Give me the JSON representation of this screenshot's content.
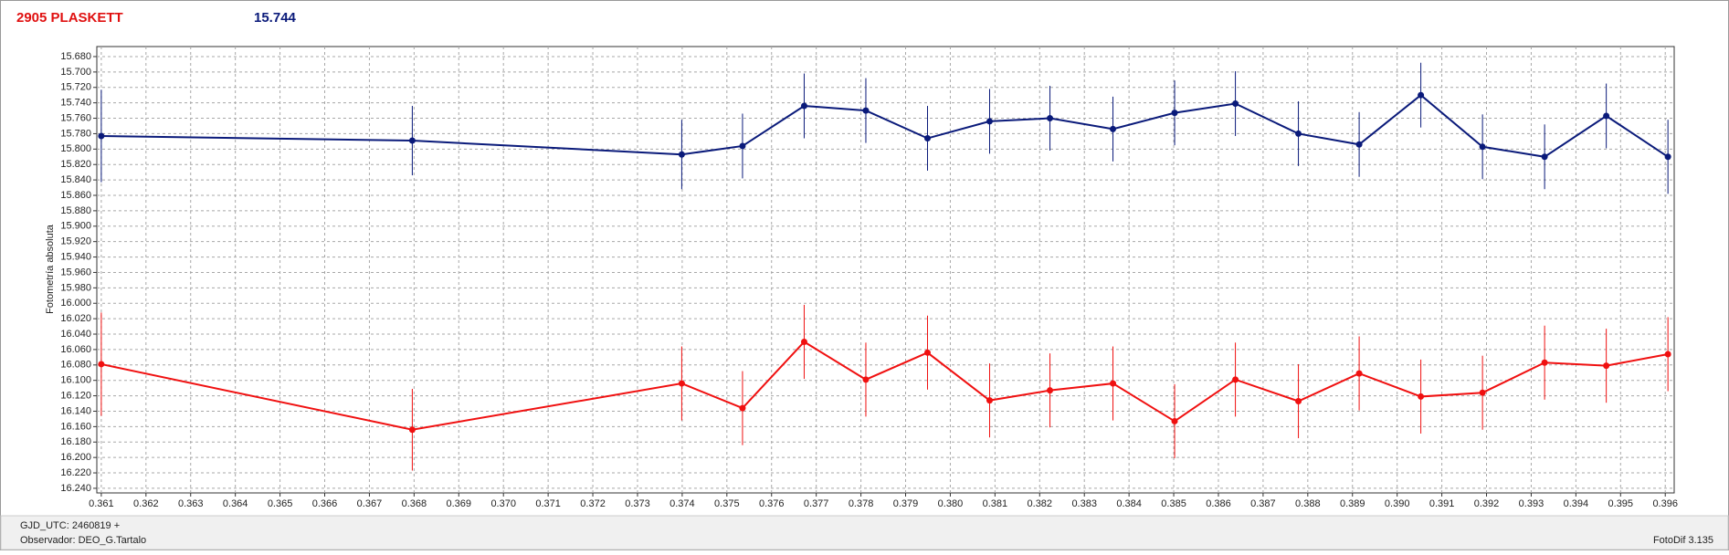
{
  "header": {
    "title": "2905 PLASKETT",
    "value": "15.744"
  },
  "footer": {
    "gjd": "GJD_UTC: 2460819 +",
    "observer": "Observador: DEO_G.Tartalo",
    "software": "FotoDif 3.135"
  },
  "chart_data": {
    "type": "errorbar-line",
    "ylabel": "Fotometría absoluta",
    "x": [
      0.361,
      0.36796,
      0.37399,
      0.37535,
      0.37673,
      0.37811,
      0.37949,
      0.38088,
      0.38223,
      0.38364,
      0.38502,
      0.38638,
      0.38779,
      0.38915,
      0.39053,
      0.39191,
      0.3933,
      0.39468,
      0.39606
    ],
    "series": [
      {
        "color": "#0a1a7a",
        "values": [
          15.783,
          15.789,
          15.807,
          15.796,
          15.744,
          15.75,
          15.786,
          15.764,
          15.76,
          15.774,
          15.753,
          15.741,
          15.78,
          15.794,
          15.73,
          15.797,
          15.81,
          15.757,
          15.81
        ],
        "errors": [
          0.06,
          0.045,
          0.045,
          0.042,
          0.042,
          0.042,
          0.042,
          0.042,
          0.042,
          0.042,
          0.042,
          0.042,
          0.042,
          0.042,
          0.042,
          0.042,
          0.042,
          0.042,
          0.048
        ]
      },
      {
        "color": "#f01010",
        "values": [
          16.079,
          16.164,
          16.104,
          16.136,
          16.05,
          16.099,
          16.064,
          16.126,
          16.113,
          16.104,
          16.153,
          16.099,
          16.127,
          16.091,
          16.121,
          16.116,
          16.077,
          16.081,
          16.066
        ],
        "errors": [
          0.067,
          0.053,
          0.048,
          0.048,
          0.048,
          0.048,
          0.048,
          0.048,
          0.048,
          0.048,
          0.048,
          0.048,
          0.048,
          0.048,
          0.048,
          0.048,
          0.048,
          0.048,
          0.048
        ]
      }
    ],
    "xlim": [
      0.3609,
      0.3962
    ],
    "ylim": [
      16.246,
      15.667
    ],
    "xticks": [
      0.361,
      0.362,
      0.363,
      0.364,
      0.365,
      0.366,
      0.367,
      0.368,
      0.369,
      {
        "value": 0.37,
        "label": "0.370"
      },
      0.371,
      0.372,
      0.373,
      0.374,
      0.375,
      0.376,
      0.377,
      0.378,
      0.379,
      {
        "value": 0.38,
        "label": "0.380"
      },
      0.381,
      0.382,
      0.383,
      0.384,
      0.385,
      0.386,
      0.387,
      0.388,
      0.389,
      {
        "value": 0.39,
        "label": "0.390"
      },
      0.391,
      0.392,
      0.393,
      0.394,
      0.395,
      0.396
    ],
    "yticks": [
      {
        "value": 15.68,
        "label": "15.680"
      },
      {
        "value": 15.7,
        "label": "15.700"
      },
      {
        "value": 15.72,
        "label": "15.720"
      },
      {
        "value": 15.74,
        "label": "15.740"
      },
      {
        "value": 15.76,
        "label": "15.760"
      },
      {
        "value": 15.78,
        "label": "15.780"
      },
      {
        "value": 15.8,
        "label": "15.800"
      },
      {
        "value": 15.82,
        "label": "15.820"
      },
      {
        "value": 15.84,
        "label": "15.840"
      },
      {
        "value": 15.86,
        "label": "15.860"
      },
      {
        "value": 15.88,
        "label": "15.880"
      },
      {
        "value": 15.9,
        "label": "15.900"
      },
      {
        "value": 15.92,
        "label": "15.920"
      },
      {
        "value": 15.94,
        "label": "15.940"
      },
      {
        "value": 15.96,
        "label": "15.960"
      },
      {
        "value": 15.98,
        "label": "15.980"
      },
      {
        "value": 16.0,
        "label": "16.000"
      },
      {
        "value": 16.02,
        "label": "16.020"
      },
      {
        "value": 16.04,
        "label": "16.040"
      },
      {
        "value": 16.06,
        "label": "16.060"
      },
      {
        "value": 16.08,
        "label": "16.080"
      },
      {
        "value": 16.1,
        "label": "16.100"
      },
      {
        "value": 16.12,
        "label": "16.120"
      },
      {
        "value": 16.14,
        "label": "16.140"
      },
      {
        "value": 16.16,
        "label": "16.160"
      },
      {
        "value": 16.18,
        "label": "16.180"
      },
      {
        "value": 16.2,
        "label": "16.200"
      },
      {
        "value": 16.22,
        "label": "16.220"
      },
      {
        "value": 16.24,
        "label": "16.240"
      }
    ],
    "grid": true
  }
}
